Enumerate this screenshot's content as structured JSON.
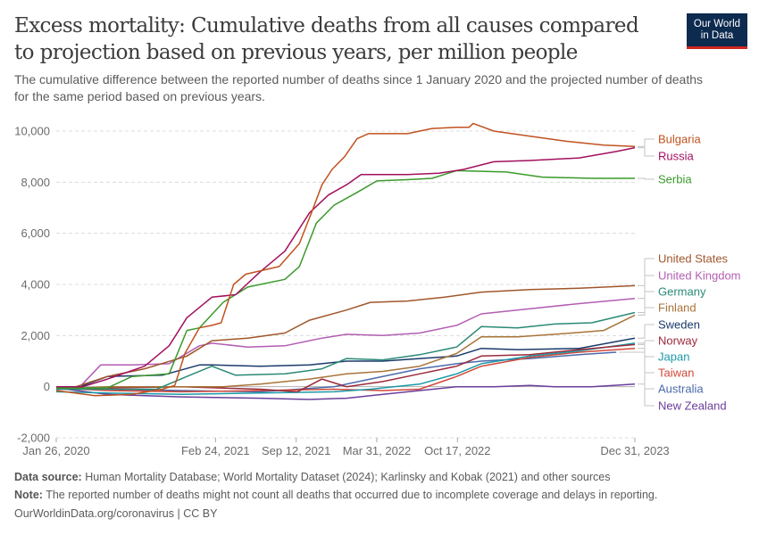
{
  "header": {
    "title": "Excess mortality: Cumulative deaths from all causes compared to projection based on previous years, per million people",
    "subtitle": "The cumulative difference between the reported number of deaths since 1 January 2020 and the projected number of deaths for the same period based on previous years.",
    "logo_line1": "Our World",
    "logo_line2": "in Data"
  },
  "footer": {
    "source_label": "Data source:",
    "source_text": " Human Mortality Database; World Mortality Dataset (2024); Karlinsky and Kobak (2021) and other sources",
    "note_label": "Note:",
    "note_text": " The reported number of deaths might not count all deaths that occurred due to incomplete coverage and delays in reporting.",
    "credit": "OurWorldinData.org/coronavirus | CC BY"
  },
  "chart_data": {
    "type": "line",
    "title": "Excess mortality: Cumulative deaths from all causes compared to projection based on previous years, per million people",
    "xlabel": "",
    "ylabel": "",
    "ylim": [
      -2000,
      10000
    ],
    "xlim": [
      "2020-01-26",
      "2023-12-31"
    ],
    "yticks": [
      {
        "value": -2000,
        "label": "-2,000"
      },
      {
        "value": 0,
        "label": "0"
      },
      {
        "value": 2000,
        "label": "2,000"
      },
      {
        "value": 4000,
        "label": "4,000"
      },
      {
        "value": 6000,
        "label": "6,000"
      },
      {
        "value": 8000,
        "label": "8,000"
      },
      {
        "value": 10000,
        "label": "10,000"
      }
    ],
    "xticks": [
      {
        "date": "2020-01-26",
        "label": "Jan 26, 2020"
      },
      {
        "date": "2021-02-24",
        "label": "Feb 24, 2021"
      },
      {
        "date": "2021-09-12",
        "label": "Sep 12, 2021"
      },
      {
        "date": "2022-03-31",
        "label": "Mar 31, 2022"
      },
      {
        "date": "2022-10-17",
        "label": "Oct 17, 2022"
      },
      {
        "date": "2023-12-31",
        "label": "Dec 31, 2023"
      }
    ],
    "grid": true,
    "legend": "right, end-of-line labels",
    "series": [
      {
        "name": "Bulgaria",
        "color": "#c0521f",
        "x": [
          "2020-01-26",
          "2020-05-01",
          "2020-08-01",
          "2020-10-15",
          "2020-11-15",
          "2020-12-10",
          "2021-01-15",
          "2021-02-15",
          "2021-03-10",
          "2021-04-10",
          "2021-05-10",
          "2021-08-01",
          "2021-09-20",
          "2021-10-20",
          "2021-11-15",
          "2021-12-10",
          "2022-01-10",
          "2022-02-10",
          "2022-03-10",
          "2022-04-20",
          "2022-06-15",
          "2022-08-15",
          "2022-10-15",
          "2022-11-15",
          "2022-11-25",
          "2023-01-15",
          "2023-04-15",
          "2023-07-15",
          "2023-10-15",
          "2023-12-31"
        ],
        "values": [
          -150,
          -350,
          -300,
          -100,
          50,
          1300,
          2300,
          2400,
          2500,
          4000,
          4400,
          4700,
          5600,
          6800,
          7900,
          8500,
          9000,
          9700,
          9900,
          9900,
          9900,
          10100,
          10150,
          10150,
          10300,
          10000,
          9800,
          9600,
          9450,
          9400
        ]
      },
      {
        "name": "Russia",
        "color": "#a2105e",
        "x": [
          "2020-01-26",
          "2020-04-01",
          "2020-06-01",
          "2020-09-01",
          "2020-11-01",
          "2020-12-15",
          "2021-02-15",
          "2021-04-15",
          "2021-06-15",
          "2021-08-15",
          "2021-10-15",
          "2021-12-01",
          "2022-01-15",
          "2022-02-20",
          "2022-03-31",
          "2022-06-15",
          "2022-09-01",
          "2022-11-01",
          "2023-01-15",
          "2023-04-15",
          "2023-08-15",
          "2023-11-15",
          "2023-12-31"
        ],
        "values": [
          0,
          0,
          300,
          800,
          1600,
          2700,
          3500,
          3600,
          4500,
          5300,
          6800,
          7500,
          7900,
          8300,
          8300,
          8300,
          8350,
          8500,
          8800,
          8850,
          8950,
          9200,
          9350
        ]
      },
      {
        "name": "Serbia",
        "color": "#3a9a2a",
        "x": [
          "2020-01-26",
          "2020-06-01",
          "2020-08-01",
          "2020-11-01",
          "2020-12-15",
          "2021-01-15",
          "2021-03-15",
          "2021-05-15",
          "2021-08-15",
          "2021-09-20",
          "2021-11-01",
          "2021-12-15",
          "2022-02-10",
          "2022-03-31",
          "2022-06-15",
          "2022-08-15",
          "2022-10-15",
          "2023-02-15",
          "2023-05-15",
          "2023-09-15",
          "2023-12-31"
        ],
        "values": [
          -50,
          -50,
          400,
          500,
          2200,
          2300,
          3300,
          3900,
          4200,
          4700,
          6400,
          7100,
          7600,
          8050,
          8100,
          8150,
          8450,
          8400,
          8200,
          8150,
          8150
        ]
      },
      {
        "name": "United States",
        "color": "#a0562c",
        "x": [
          "2020-01-26",
          "2020-03-15",
          "2020-06-01",
          "2020-09-01",
          "2020-12-15",
          "2021-02-15",
          "2021-05-15",
          "2021-08-15",
          "2021-10-15",
          "2022-01-15",
          "2022-03-15",
          "2022-06-15",
          "2022-09-15",
          "2022-12-15",
          "2023-04-15",
          "2023-08-15",
          "2023-12-31"
        ],
        "values": [
          0,
          0,
          400,
          700,
          1200,
          1800,
          1900,
          2100,
          2600,
          3000,
          3300,
          3350,
          3500,
          3700,
          3800,
          3850,
          3950
        ]
      },
      {
        "name": "United Kingdom",
        "color": "#b25eb2",
        "x": [
          "2020-01-26",
          "2020-03-25",
          "2020-05-15",
          "2020-08-01",
          "2020-11-01",
          "2021-01-15",
          "2021-02-15",
          "2021-05-15",
          "2021-08-15",
          "2021-11-15",
          "2022-01-15",
          "2022-04-15",
          "2022-07-15",
          "2022-10-15",
          "2022-12-15",
          "2023-04-15",
          "2023-08-15",
          "2023-12-31"
        ],
        "values": [
          0,
          0,
          850,
          850,
          900,
          1600,
          1700,
          1550,
          1600,
          1900,
          2050,
          2000,
          2100,
          2400,
          2850,
          3050,
          3250,
          3450
        ]
      },
      {
        "name": "Germany",
        "color": "#2a8a76",
        "x": [
          "2020-01-26",
          "2020-06-01",
          "2020-10-01",
          "2020-12-15",
          "2021-02-15",
          "2021-04-15",
          "2021-08-15",
          "2021-11-15",
          "2022-01-15",
          "2022-04-15",
          "2022-07-15",
          "2022-10-15",
          "2022-12-15",
          "2023-03-15",
          "2023-06-15",
          "2023-09-15",
          "2023-12-31"
        ],
        "values": [
          -100,
          -100,
          -100,
          400,
          800,
          450,
          500,
          700,
          1100,
          1050,
          1250,
          1550,
          2350,
          2300,
          2450,
          2500,
          2900
        ]
      },
      {
        "name": "Finland",
        "color": "#a8743a",
        "x": [
          "2020-01-26",
          "2020-06-01",
          "2020-12-01",
          "2021-03-15",
          "2021-06-15",
          "2021-10-15",
          "2022-01-15",
          "2022-04-15",
          "2022-07-15",
          "2022-10-15",
          "2022-12-15",
          "2023-03-15",
          "2023-06-15",
          "2023-10-15",
          "2023-12-31"
        ],
        "values": [
          -100,
          0,
          0,
          0,
          100,
          300,
          500,
          600,
          800,
          1300,
          1950,
          1950,
          2050,
          2200,
          2800
        ]
      },
      {
        "name": "Sweden",
        "color": "#1a3a6b",
        "x": [
          "2020-01-26",
          "2020-03-25",
          "2020-06-01",
          "2020-10-15",
          "2021-01-15",
          "2021-02-15",
          "2021-06-15",
          "2021-10-15",
          "2022-01-15",
          "2022-04-15",
          "2022-07-15",
          "2022-10-15",
          "2022-12-15",
          "2023-03-15",
          "2023-08-15",
          "2023-12-31"
        ],
        "values": [
          0,
          0,
          400,
          450,
          850,
          850,
          800,
          850,
          1000,
          1000,
          1100,
          1200,
          1500,
          1450,
          1500,
          1900
        ]
      },
      {
        "name": "Norway",
        "color": "#9a2a3a",
        "x": [
          "2020-01-26",
          "2020-06-01",
          "2020-12-01",
          "2021-06-15",
          "2021-09-15",
          "2021-11-15",
          "2022-01-15",
          "2022-04-15",
          "2022-07-15",
          "2022-10-15",
          "2022-12-15",
          "2023-04-15",
          "2023-08-15",
          "2023-12-31"
        ],
        "values": [
          -100,
          -50,
          0,
          -100,
          -200,
          300,
          0,
          200,
          500,
          800,
          1200,
          1250,
          1450,
          1650
        ]
      },
      {
        "name": "Japan",
        "color": "#1b9aa8",
        "x": [
          "2020-01-26",
          "2020-06-01",
          "2020-12-01",
          "2021-06-15",
          "2021-12-15",
          "2022-03-15",
          "2022-07-15",
          "2022-10-15",
          "2022-12-15",
          "2023-04-15",
          "2023-08-15",
          "2023-12-31"
        ],
        "values": [
          -200,
          -250,
          -300,
          -250,
          -200,
          -100,
          100,
          500,
          900,
          1200,
          1400,
          1700
        ]
      },
      {
        "name": "Taiwan",
        "color": "#d1483a",
        "x": [
          "2020-01-26",
          "2020-06-01",
          "2020-12-01",
          "2021-06-15",
          "2021-12-15",
          "2022-04-15",
          "2022-07-15",
          "2022-10-15",
          "2022-12-15",
          "2023-04-15",
          "2023-08-15",
          "2023-12-31"
        ],
        "values": [
          -50,
          -150,
          -200,
          -150,
          -100,
          -150,
          -100,
          400,
          800,
          1150,
          1350,
          1500
        ]
      },
      {
        "name": "Australia",
        "color": "#4a6aaa",
        "x": [
          "2020-01-26",
          "2020-06-01",
          "2020-12-01",
          "2021-06-15",
          "2021-12-15",
          "2022-03-15",
          "2022-07-15",
          "2022-10-15",
          "2022-12-15",
          "2023-04-15",
          "2023-08-15",
          "2023-11-15"
        ],
        "values": [
          -50,
          -100,
          -150,
          -200,
          0,
          300,
          700,
          900,
          1000,
          1100,
          1250,
          1350
        ]
      },
      {
        "name": "New Zealand",
        "color": "#6a3e9a",
        "x": [
          "2020-01-26",
          "2020-06-01",
          "2020-12-01",
          "2021-06-15",
          "2021-10-15",
          "2022-01-15",
          "2022-04-15",
          "2022-07-15",
          "2022-10-15",
          "2023-01-15",
          "2023-04-15",
          "2023-06-15",
          "2023-09-15",
          "2023-12-31"
        ],
        "values": [
          -50,
          -300,
          -400,
          -450,
          -500,
          -450,
          -300,
          -150,
          0,
          0,
          50,
          0,
          0,
          100
        ]
      }
    ]
  }
}
